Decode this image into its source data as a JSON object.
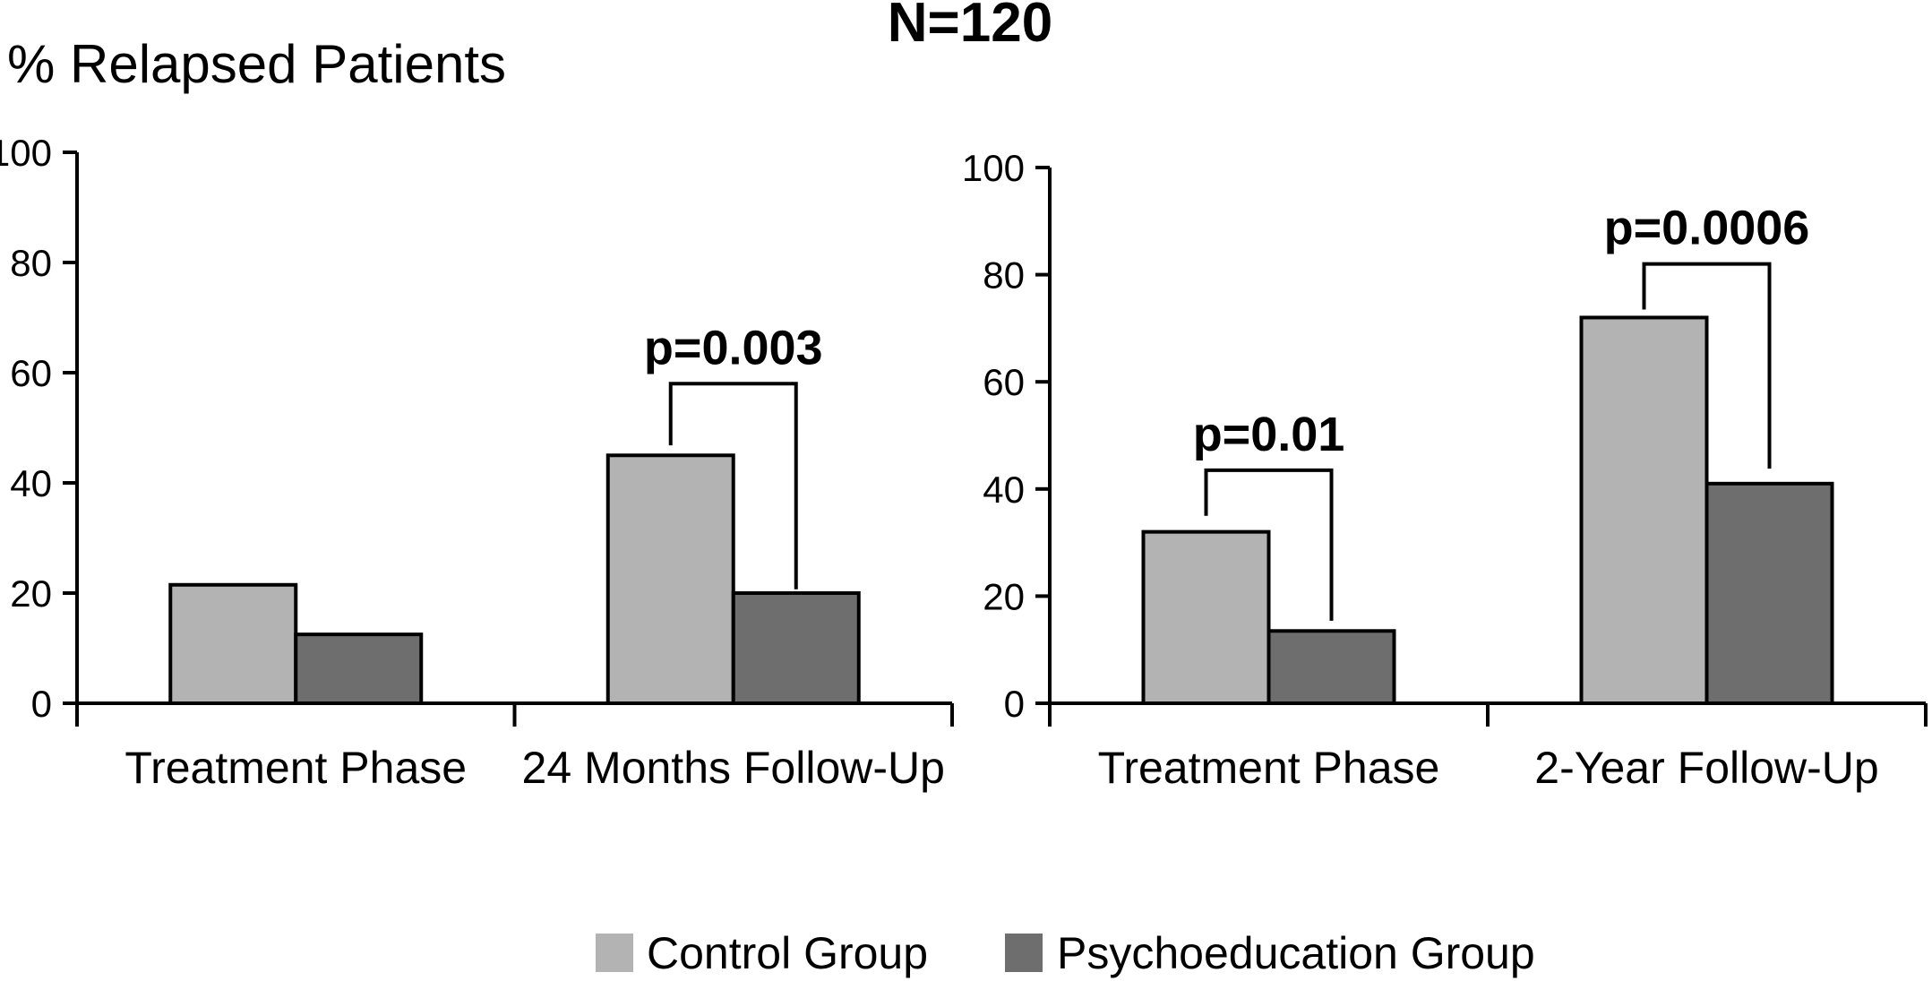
{
  "page": {
    "title": "% Relapsed Patients",
    "sample_size": "N=120"
  },
  "legend": {
    "position": "bottom",
    "items": [
      {
        "label": "Control Group",
        "color": "#b3b3b3"
      },
      {
        "label": "Psychoeducation Group",
        "color": "#6e6e6e"
      }
    ]
  },
  "chart_data": [
    {
      "type": "bar",
      "name": "left-panel",
      "title": "",
      "ylabel": "% Relapsed Patients",
      "xlabel": "",
      "categories": [
        "Treatment Phase",
        "24 Months Follow-Up"
      ],
      "series": [
        {
          "name": "Control Group",
          "color": "#b3b3b3",
          "values": [
            21.5,
            45
          ]
        },
        {
          "name": "Psychoeducation Group",
          "color": "#6e6e6e",
          "values": [
            12.5,
            20
          ]
        }
      ],
      "ylim": [
        0,
        100
      ],
      "yticks": [
        0,
        20,
        40,
        60,
        80,
        100
      ],
      "grid": false,
      "annotations": [
        {
          "label": "p=0.003",
          "category_index": 1,
          "bracket_top": 58,
          "bracket_left_bottom": 46.8,
          "bracket_right_bottom": 20.7
        }
      ]
    },
    {
      "type": "bar",
      "name": "right-panel",
      "title": "",
      "ylabel": "% Relapsed Patients",
      "xlabel": "",
      "categories": [
        "Treatment Phase",
        "2-Year Follow-Up"
      ],
      "series": [
        {
          "name": "Control Group",
          "color": "#b3b3b3",
          "values": [
            32,
            72
          ]
        },
        {
          "name": "Psychoeducation Group",
          "color": "#6e6e6e",
          "values": [
            13.5,
            41
          ]
        }
      ],
      "ylim": [
        0,
        100
      ],
      "yticks": [
        0,
        20,
        40,
        60,
        80,
        100
      ],
      "grid": false,
      "annotations": [
        {
          "label": "p=0.01",
          "category_index": 0,
          "bracket_top": 43.5,
          "bracket_left_bottom": 35,
          "bracket_right_bottom": 15.4
        },
        {
          "label": "p=0.0006",
          "category_index": 1,
          "bracket_top": 82,
          "bracket_left_bottom": 73.5,
          "bracket_right_bottom": 43.8
        }
      ]
    }
  ]
}
